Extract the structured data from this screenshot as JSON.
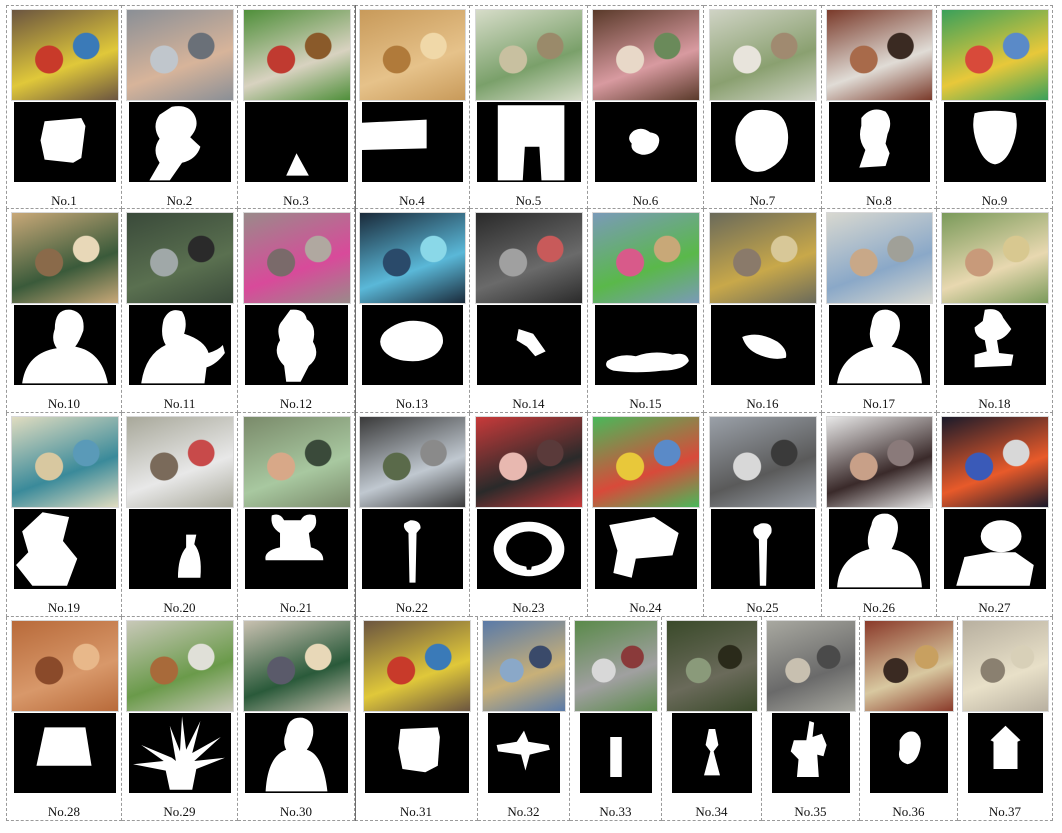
{
  "items": [
    {
      "label": "No.1",
      "photo": "toy-box-still-life",
      "colors": [
        "#6b5540",
        "#e0c83a",
        "#c83a2a",
        "#3a7ab8"
      ]
    },
    {
      "label": "No.2",
      "photo": "baby-on-floor",
      "colors": [
        "#8a8f96",
        "#d7b49a",
        "#c0c6cc",
        "#6a7078"
      ]
    },
    {
      "label": "No.3",
      "photo": "christmas-ornaments",
      "colors": [
        "#4f8f3a",
        "#d8d2c0",
        "#c03a30",
        "#8a5a2a"
      ]
    },
    {
      "label": "No.4",
      "photo": "wooden-boards",
      "colors": [
        "#c89a5a",
        "#e6c28a",
        "#b07a3a",
        "#f0d8a8"
      ]
    },
    {
      "label": "No.5",
      "photo": "hanging-poster",
      "colors": [
        "#d6dcc8",
        "#7aa06a",
        "#c8c0a0",
        "#9a8a6a"
      ]
    },
    {
      "label": "No.6",
      "photo": "stuffed-toys-shelf",
      "colors": [
        "#5a3a2a",
        "#d89aa0",
        "#e8d8c8",
        "#6a8a5a"
      ]
    },
    {
      "label": "No.7",
      "photo": "bowling-ball-pins",
      "colors": [
        "#cfd3c4",
        "#8aa070",
        "#e8e4dc",
        "#a08a70"
      ]
    },
    {
      "label": "No.8",
      "photo": "bust-statue-shelf",
      "colors": [
        "#7a3a2a",
        "#e0dcd6",
        "#a86a4a",
        "#3a2a22"
      ]
    },
    {
      "label": "No.9",
      "photo": "drum-on-playmat",
      "colors": [
        "#3aa05a",
        "#e8c83a",
        "#d84a3a",
        "#5a8ac8"
      ]
    },
    {
      "label": "No.10",
      "photo": "man-in-office",
      "colors": [
        "#c8a878",
        "#3a5a3a",
        "#8a6a4a",
        "#e8d8b8"
      ]
    },
    {
      "label": "No.11",
      "photo": "man-in-park",
      "colors": [
        "#3a4a3a",
        "#5a7050",
        "#a0a8a8",
        "#2a2a2a"
      ]
    },
    {
      "label": "No.12",
      "photo": "child-pink-jacket",
      "colors": [
        "#9a8a8a",
        "#d84a9a",
        "#7a6a6a",
        "#b0a8a0"
      ]
    },
    {
      "label": "No.13",
      "photo": "fish-balloon",
      "colors": [
        "#1a2a3a",
        "#5ab8d8",
        "#2a4a6a",
        "#8ad8e8"
      ]
    },
    {
      "label": "No.14",
      "photo": "hanging-kite-hall",
      "colors": [
        "#2a2a2a",
        "#6a6a6a",
        "#a0a0a0",
        "#c85a5a"
      ]
    },
    {
      "label": "No.15",
      "photo": "toy-bird-shelf",
      "colors": [
        "#7a9ab8",
        "#5ab84a",
        "#d85a8a",
        "#c8a878"
      ]
    },
    {
      "label": "No.16",
      "photo": "rock-pile-doll",
      "colors": [
        "#6a6a5a",
        "#c8a84a",
        "#8a7a6a",
        "#d8c898"
      ]
    },
    {
      "label": "No.17",
      "photo": "man-blue-shirt",
      "colors": [
        "#d8d8d0",
        "#8aa8c8",
        "#c8a888",
        "#a0a098"
      ]
    },
    {
      "label": "No.18",
      "photo": "doll-behind-book",
      "colors": [
        "#7a9a5a",
        "#e8d8b0",
        "#c89a7a",
        "#d8c890"
      ]
    },
    {
      "label": "No.19",
      "photo": "patterned-fabric",
      "colors": [
        "#e0dcc0",
        "#3a8a9a",
        "#d8c8a0",
        "#5a9ab8"
      ]
    },
    {
      "label": "No.20",
      "photo": "spray-bottle-window",
      "colors": [
        "#a8a89a",
        "#e8e8e8",
        "#7a6a5a",
        "#c84a4a"
      ]
    },
    {
      "label": "No.21",
      "photo": "baby-doll-bucket",
      "colors": [
        "#7a8a6a",
        "#a8c8a0",
        "#d8a888",
        "#3a4a3a"
      ]
    },
    {
      "label": "No.22",
      "photo": "street-lamp-trees",
      "colors": [
        "#3a3a3a",
        "#c0c8d0",
        "#5a6a4a",
        "#8a8a8a"
      ]
    },
    {
      "label": "No.23",
      "photo": "toy-steering-wheel",
      "colors": [
        "#c83a3a",
        "#2a2a2a",
        "#e8b8b0",
        "#5a3a3a"
      ]
    },
    {
      "label": "No.24",
      "photo": "toy-on-playmat",
      "colors": [
        "#4ab85a",
        "#d84a3a",
        "#e8c83a",
        "#5a8ac8"
      ]
    },
    {
      "label": "No.25",
      "photo": "lamp-by-house",
      "colors": [
        "#9aa0a8",
        "#5a5a5a",
        "#d8d8d8",
        "#3a3a3a"
      ]
    },
    {
      "label": "No.26",
      "photo": "man-dark-sweater",
      "colors": [
        "#e8e8e8",
        "#3a2a2a",
        "#c8a088",
        "#8a7a7a"
      ]
    },
    {
      "label": "No.27",
      "photo": "orange-ball-figure",
      "colors": [
        "#1a1a2a",
        "#e85a2a",
        "#3a5ab8",
        "#d8d8d8"
      ]
    },
    {
      "label": "No.28",
      "photo": "clay-pots-stack",
      "colors": [
        "#b86a3a",
        "#d8986a",
        "#8a4a2a",
        "#e8b88a"
      ]
    },
    {
      "label": "No.29",
      "photo": "aloe-plant-pot",
      "colors": [
        "#c8c8b8",
        "#6a9a4a",
        "#a86a3a",
        "#e0e0d8"
      ]
    },
    {
      "label": "No.30",
      "photo": "man-by-posters",
      "colors": [
        "#c8c0b0",
        "#2a5a3a",
        "#5a5a6a",
        "#e8d8b8"
      ]
    },
    {
      "label": "No.31",
      "photo": "toy-box-repeat",
      "colors": [
        "#6b5540",
        "#e0c83a",
        "#c83a2a",
        "#3a7ab8"
      ]
    },
    {
      "label": "No.32",
      "photo": "airplane-sky",
      "colors": [
        "#5a7aa8",
        "#c8b078",
        "#8aa8c8",
        "#3a4a6a"
      ]
    },
    {
      "label": "No.33",
      "photo": "road-with-sign",
      "colors": [
        "#5a8a4a",
        "#a0a0a0",
        "#d8d8d8",
        "#8a3a3a"
      ]
    },
    {
      "label": "No.34",
      "photo": "stone-lantern",
      "colors": [
        "#3a4a2a",
        "#6a6a5a",
        "#8a9a7a",
        "#2a2a1a"
      ]
    },
    {
      "label": "No.35",
      "photo": "equestrian-statue",
      "colors": [
        "#a8a8a0",
        "#6a6a6a",
        "#c8c0b0",
        "#4a4a4a"
      ]
    },
    {
      "label": "No.36",
      "photo": "lion-head-ornament",
      "colors": [
        "#8a3a2a",
        "#d8c8a0",
        "#3a2a22",
        "#c8a060"
      ]
    },
    {
      "label": "No.37",
      "photo": "gazebo-square",
      "colors": [
        "#b8b0a0",
        "#e8e0c8",
        "#8a8070",
        "#d8d0b8"
      ]
    }
  ]
}
